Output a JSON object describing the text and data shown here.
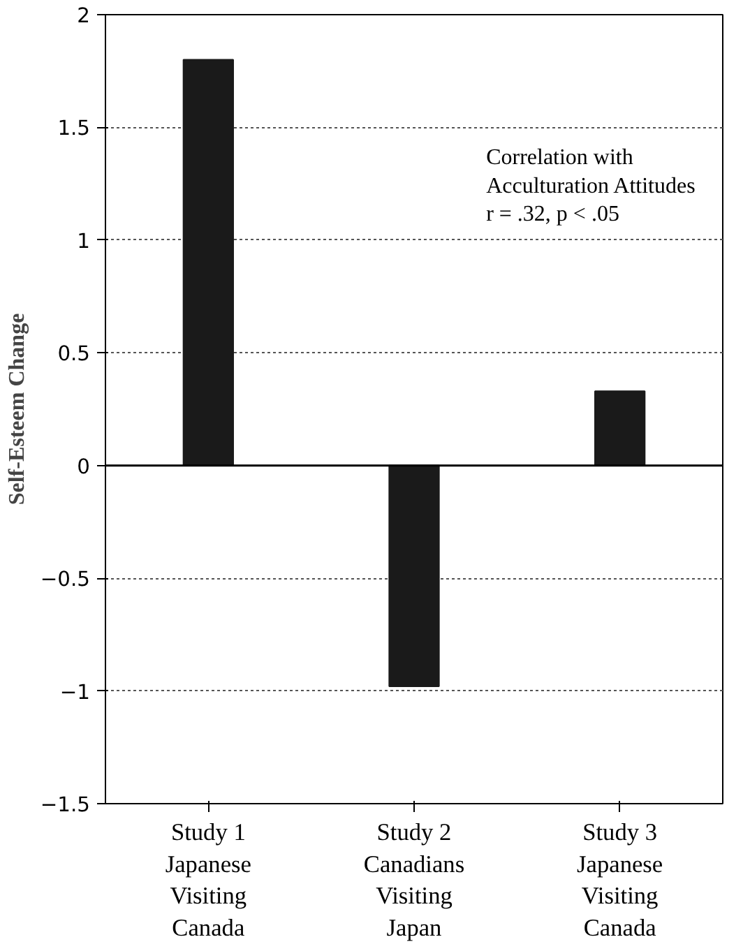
{
  "chart_data": {
    "type": "bar",
    "ylabel": "Self-Esteem Change",
    "categories": [
      "Study 1\nJapanese\nVisiting\nCanada",
      "Study 2\nCanadians\nVisiting\nJapan",
      "Study 3\nJapanese\nVisiting\nCanada"
    ],
    "values": [
      1.8,
      -0.98,
      0.33
    ],
    "color": "#1a1a1a",
    "ylim": [
      -1.5,
      2
    ],
    "yticks": [
      -1.5,
      -1,
      -0.5,
      0,
      0.5,
      1,
      1.5,
      2
    ],
    "grid": "y",
    "ref_lines": [
      {
        "axis": "y",
        "value": 0,
        "color": "#000000",
        "line_style": "solid"
      }
    ],
    "annotations": [
      "Correlation with\nAcculturation Attitudes\nr = .32, p < .05"
    ]
  }
}
